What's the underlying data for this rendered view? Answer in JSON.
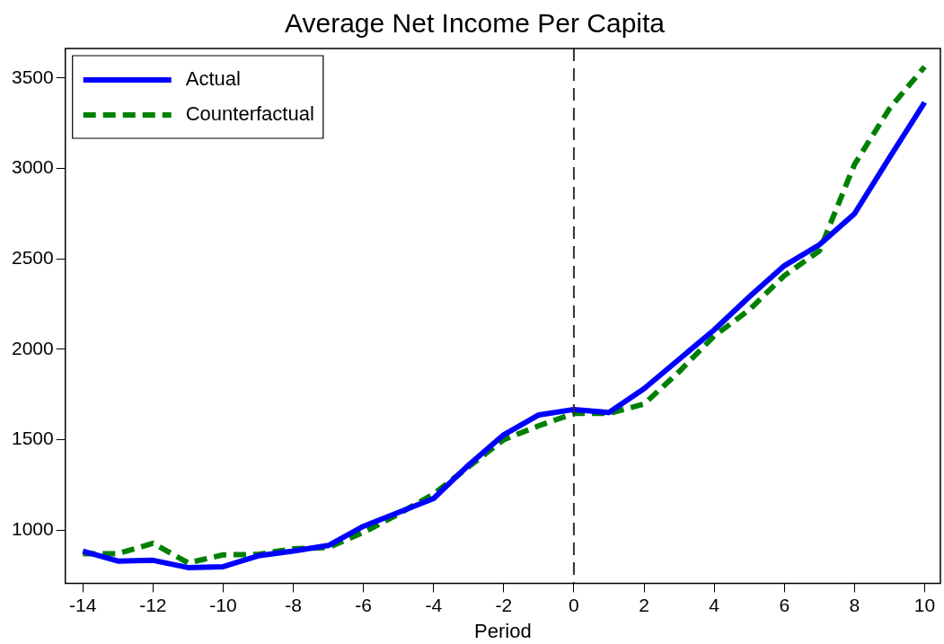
{
  "chart_data": {
    "type": "line",
    "title": "Average Net Income Per Capita",
    "xlabel": "Period",
    "x": [
      -14,
      -13,
      -12,
      -11,
      -10,
      -9,
      -8,
      -7,
      -6,
      -5,
      -4,
      -3,
      -2,
      -1,
      0,
      1,
      2,
      3,
      4,
      5,
      6,
      7,
      8,
      9,
      10
    ],
    "series": [
      {
        "name": "Actual",
        "color": "#0000ff",
        "line_style": "solid",
        "values": [
          884,
          829,
          833,
          793,
          798,
          858,
          884,
          915,
          1021,
          1098,
          1175,
          1360,
          1527,
          1637,
          1667,
          1650,
          1782,
          1945,
          2107,
          2290,
          2462,
          2578,
          2749,
          3060,
          3365
        ]
      },
      {
        "name": "Counterfactual",
        "color": "#008000",
        "line_style": "dashed",
        "values": [
          870,
          870,
          927,
          819,
          863,
          866,
          897,
          904,
          987,
          1089,
          1200,
          1350,
          1500,
          1577,
          1645,
          1645,
          1697,
          1876,
          2073,
          2218,
          2407,
          2544,
          3022,
          3331,
          3562
        ]
      }
    ],
    "xlim": [
      -14.5,
      10.45
    ],
    "xticks": [
      -14,
      -12,
      -10,
      -8,
      -6,
      -4,
      -2,
      0,
      2,
      4,
      6,
      8,
      10
    ],
    "ylim": [
      706,
      3663
    ],
    "yticks": [
      1000,
      1500,
      2000,
      2500,
      3000,
      3500
    ],
    "ref_lines": [
      {
        "axis": "x",
        "value": 0,
        "line_style": "dashed",
        "color": "#333333"
      }
    ],
    "grid": false,
    "legend": "top left",
    "marker": "none"
  }
}
